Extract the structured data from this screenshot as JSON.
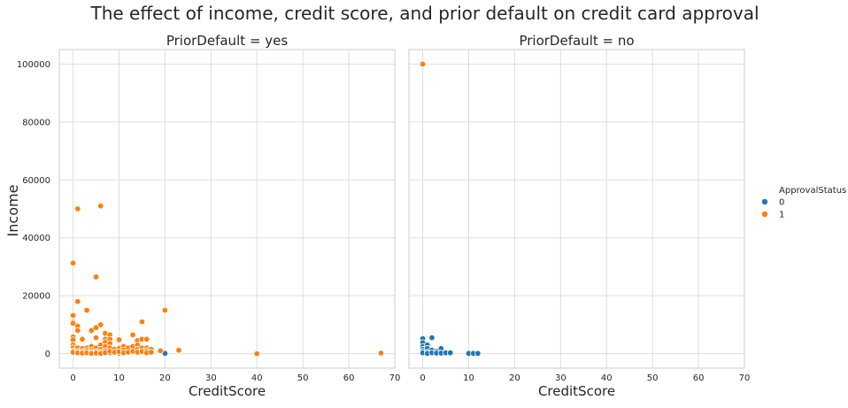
{
  "chart_data": {
    "type": "scatter",
    "title": "The effect of income, credit score, and prior default on credit card approval",
    "xlabel": "CreditScore",
    "ylabel": "Income",
    "xlim": [
      -3,
      70
    ],
    "ylim": [
      -5000,
      105000
    ],
    "xticks": [
      0,
      10,
      20,
      30,
      40,
      50,
      60,
      70
    ],
    "yticks": [
      0,
      20000,
      40000,
      60000,
      80000,
      100000
    ],
    "grid": true,
    "legend": {
      "title": "ApprovalStatus",
      "placement": "right",
      "entries": [
        {
          "label": "0",
          "color": "#1f77b4"
        },
        {
          "label": "1",
          "color": "#ff7f0e"
        }
      ]
    },
    "facets": [
      {
        "title": "PriorDefault = yes",
        "series": [
          {
            "name": "0",
            "color": "#1f77b4",
            "points": [
              [
                0,
                200
              ],
              [
                8,
                300
              ],
              [
                10,
                200
              ],
              [
                10,
                1000
              ],
              [
                20,
                100
              ]
            ]
          },
          {
            "name": "1",
            "color": "#ff7f0e",
            "points": [
              [
                0,
                31300
              ],
              [
                0,
                13200
              ],
              [
                0,
                11000
              ],
              [
                0,
                10500
              ],
              [
                0,
                5800
              ],
              [
                0,
                4800
              ],
              [
                0,
                3000
              ],
              [
                0,
                2000
              ],
              [
                0,
                1000
              ],
              [
                0,
                500
              ],
              [
                1,
                50000
              ],
              [
                1,
                18000
              ],
              [
                1,
                9500
              ],
              [
                1,
                8000
              ],
              [
                1,
                2000
              ],
              [
                1,
                800
              ],
              [
                1,
                300
              ],
              [
                2,
                5000
              ],
              [
                2,
                1800
              ],
              [
                2,
                700
              ],
              [
                2,
                200
              ],
              [
                3,
                15000
              ],
              [
                3,
                2000
              ],
              [
                3,
                1000
              ],
              [
                3,
                300
              ],
              [
                4,
                8000
              ],
              [
                4,
                2500
              ],
              [
                4,
                1200
              ],
              [
                4,
                500
              ],
              [
                4,
                100
              ],
              [
                5,
                26500
              ],
              [
                5,
                9000
              ],
              [
                5,
                5500
              ],
              [
                5,
                2000
              ],
              [
                5,
                700
              ],
              [
                5,
                200
              ],
              [
                6,
                51000
              ],
              [
                6,
                10000
              ],
              [
                6,
                3000
              ],
              [
                6,
                1500
              ],
              [
                6,
                500
              ],
              [
                6,
                100
              ],
              [
                7,
                7000
              ],
              [
                7,
                5000
              ],
              [
                7,
                4000
              ],
              [
                7,
                2500
              ],
              [
                7,
                1000
              ],
              [
                7,
                300
              ],
              [
                8,
                6500
              ],
              [
                8,
                5000
              ],
              [
                8,
                3500
              ],
              [
                8,
                2000
              ],
              [
                8,
                800
              ],
              [
                9,
                1500
              ],
              [
                9,
                500
              ],
              [
                10,
                4800
              ],
              [
                10,
                1800
              ],
              [
                10,
                700
              ],
              [
                11,
                2500
              ],
              [
                11,
                1200
              ],
              [
                11,
                300
              ],
              [
                12,
                2000
              ],
              [
                12,
                500
              ],
              [
                13,
                6500
              ],
              [
                13,
                2500
              ],
              [
                13,
                800
              ],
              [
                14,
                4500
              ],
              [
                14,
                3000
              ],
              [
                14,
                1500
              ],
              [
                14,
                500
              ],
              [
                15,
                11000
              ],
              [
                15,
                5000
              ],
              [
                15,
                2000
              ],
              [
                15,
                800
              ],
              [
                16,
                5000
              ],
              [
                16,
                2000
              ],
              [
                16,
                1000
              ],
              [
                16,
                300
              ],
              [
                17,
                1500
              ],
              [
                17,
                500
              ],
              [
                19,
                1000
              ],
              [
                20,
                15000
              ],
              [
                23,
                1200
              ],
              [
                40,
                0
              ],
              [
                67,
                200
              ]
            ]
          }
        ]
      },
      {
        "title": "PriorDefault = no",
        "series": [
          {
            "name": "0",
            "color": "#1f77b4",
            "points": [
              [
                0,
                5200
              ],
              [
                0,
                3800
              ],
              [
                0,
                2500
              ],
              [
                0,
                1500
              ],
              [
                0,
                800
              ],
              [
                0,
                300
              ],
              [
                1,
                3000
              ],
              [
                1,
                1800
              ],
              [
                1,
                500
              ],
              [
                1,
                100
              ],
              [
                2,
                5500
              ],
              [
                2,
                1200
              ],
              [
                2,
                300
              ],
              [
                3,
                800
              ],
              [
                3,
                200
              ],
              [
                4,
                1800
              ],
              [
                4,
                200
              ],
              [
                5,
                300
              ],
              [
                6,
                300
              ],
              [
                10,
                100
              ],
              [
                11,
                100
              ],
              [
                12,
                100
              ]
            ]
          },
          {
            "name": "1",
            "color": "#ff7f0e",
            "points": [
              [
                0,
                100000
              ]
            ]
          }
        ]
      }
    ]
  }
}
